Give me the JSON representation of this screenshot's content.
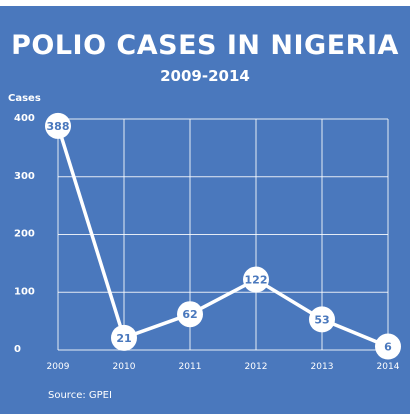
{
  "chart_data": {
    "type": "line",
    "title": "POLIO CASES IN NIGERIA",
    "subtitle": "2009-2014",
    "ylabel": "Cases",
    "xlabel": "",
    "x": [
      "2009",
      "2010",
      "2011",
      "2012",
      "2013",
      "2014"
    ],
    "values": [
      388,
      21,
      62,
      122,
      53,
      6
    ],
    "data_labels": [
      "388",
      "21",
      "62",
      "122",
      "53",
      "6"
    ],
    "ylim": [
      0,
      400
    ],
    "yticks": [
      0,
      100,
      200,
      300,
      400
    ],
    "ytick_labels": [
      "0",
      "100",
      "200",
      "300",
      "400"
    ],
    "grid": true,
    "source": "Source: GPEI"
  },
  "colors": {
    "background": "#4a78bd",
    "line": "#ffffff",
    "marker_fill": "#ffffff",
    "label_text": "#4a78bd",
    "grid": "#ffffff"
  }
}
